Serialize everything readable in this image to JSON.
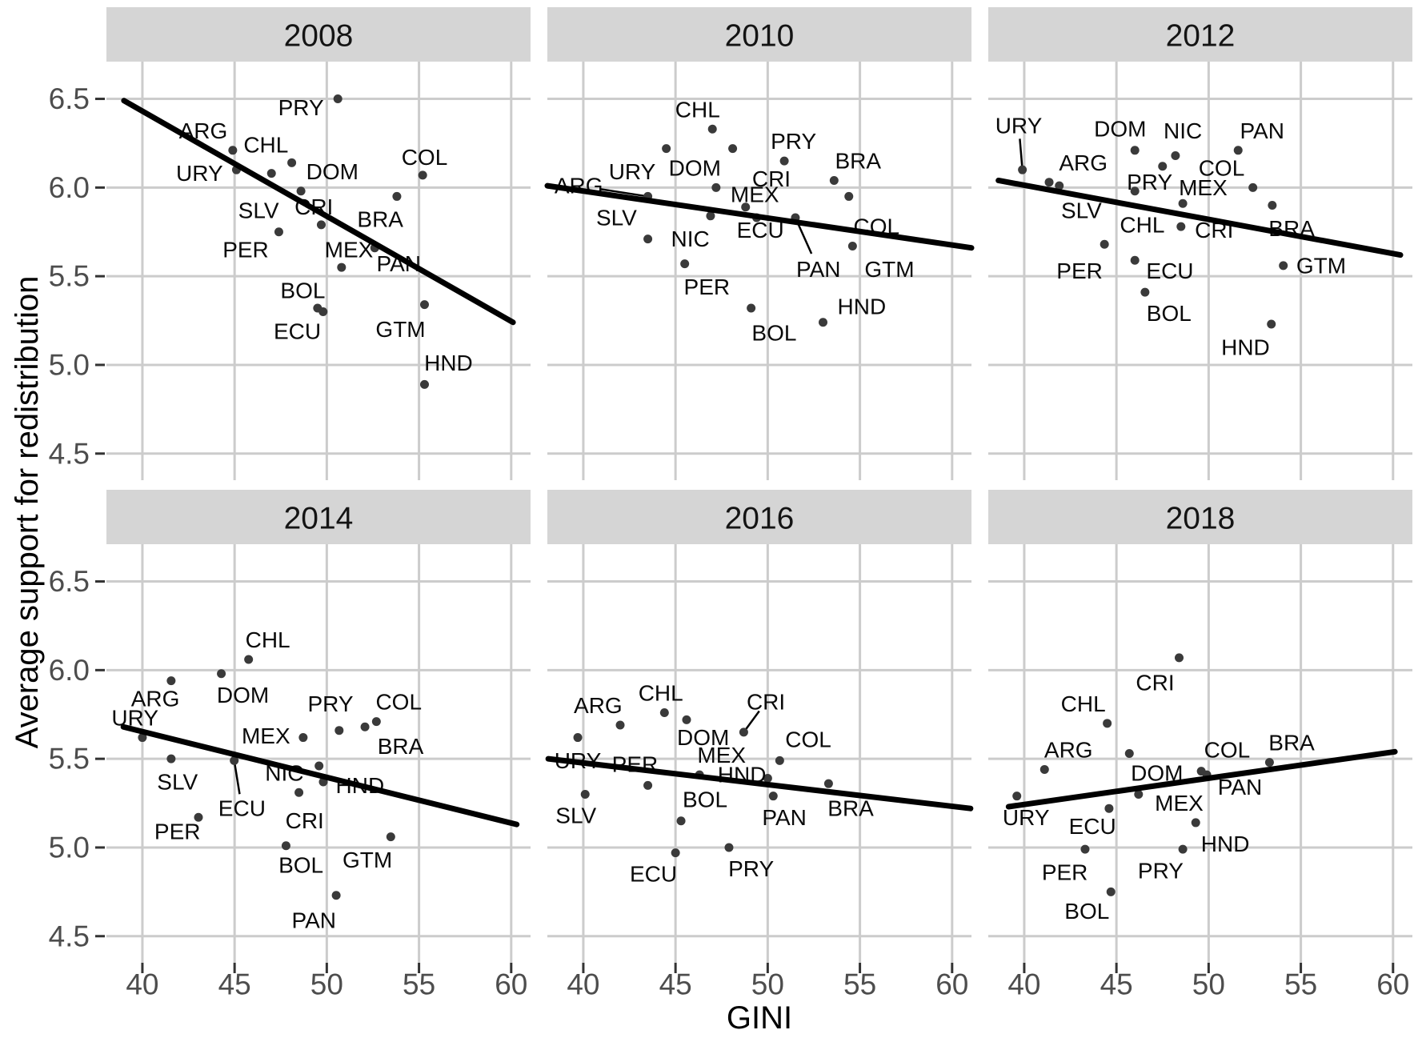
{
  "chart_data": {
    "type": "scatter",
    "title": "",
    "xlabel": "GINI",
    "ylabel": "Average support for redistribution",
    "x_ticks": [
      40,
      45,
      50,
      55,
      60
    ],
    "y_ticks": [
      6.5,
      6.0,
      5.5,
      5.0,
      4.5
    ],
    "xlim": [
      38.05,
      61.05
    ],
    "ylim": [
      4.35,
      6.71
    ],
    "grid": true,
    "legend_position": "none",
    "facets": [
      {
        "year": "2008",
        "trend": {
          "x1": 39.0,
          "y1": 6.49,
          "x2": 60.1,
          "y2": 5.24
        },
        "points": [
          {
            "c": "PRY",
            "x": 50.6,
            "y": 6.5,
            "lx": 48.6,
            "ly": 6.45
          },
          {
            "c": "ARG",
            "x": 44.9,
            "y": 6.21,
            "lx": 43.3,
            "ly": 6.32
          },
          {
            "c": "CHL",
            "x": 48.1,
            "y": 6.14,
            "lx": 46.7,
            "ly": 6.24
          },
          {
            "c": "URY",
            "x": 45.1,
            "y": 6.1,
            "lx": 43.1,
            "ly": 6.08
          },
          {
            "c": "DOM",
            "x": 47.0,
            "y": 6.08,
            "lx": 50.3,
            "ly": 6.09
          },
          {
            "c": "COL",
            "x": 55.2,
            "y": 6.07,
            "lx": 55.3,
            "ly": 6.17
          },
          {
            "c": "SLV",
            "x": 48.6,
            "y": 5.98,
            "lx": 46.3,
            "ly": 5.87
          },
          {
            "c": "BRA",
            "x": 53.8,
            "y": 5.95,
            "lx": 52.9,
            "ly": 5.82
          },
          {
            "c": "CRI",
            "x": 49.7,
            "y": 5.79,
            "lx": 49.3,
            "ly": 5.89
          },
          {
            "c": "PER",
            "x": 47.4,
            "y": 5.75,
            "lx": 45.6,
            "ly": 5.65
          },
          {
            "c": "MEX",
            "x": 52.6,
            "y": 5.66,
            "lx": 51.2,
            "ly": 5.65
          },
          {
            "c": "PAN",
            "x": 50.8,
            "y": 5.55,
            "lx": 53.9,
            "ly": 5.57
          },
          {
            "c": "GTM",
            "x": 55.3,
            "y": 5.34,
            "lx": 54.0,
            "ly": 5.2
          },
          {
            "c": "BOL",
            "x": 49.5,
            "y": 5.32,
            "lx": 48.7,
            "ly": 5.42
          },
          {
            "c": "ECU",
            "x": 49.8,
            "y": 5.3,
            "lx": 48.4,
            "ly": 5.19
          },
          {
            "c": "HND",
            "x": 55.3,
            "y": 4.89,
            "lx": 56.6,
            "ly": 5.01
          }
        ]
      },
      {
        "year": "2010",
        "trend": {
          "x1": 38.05,
          "y1": 6.01,
          "x2": 61.05,
          "y2": 5.66
        },
        "points": [
          {
            "c": "CHL",
            "x": 47.0,
            "y": 6.33,
            "lx": 46.2,
            "ly": 6.44
          },
          {
            "c": "URY",
            "x": 44.5,
            "y": 6.22,
            "lx": 42.65,
            "ly": 6.09
          },
          {
            "c": "CRI",
            "x": 48.1,
            "y": 6.22,
            "lx": 50.2,
            "ly": 6.05
          },
          {
            "c": "PRY",
            "x": 50.9,
            "y": 6.15,
            "lx": 51.4,
            "ly": 6.26
          },
          {
            "c": "BRA",
            "x": 53.6,
            "y": 6.04,
            "lx": 54.9,
            "ly": 6.15
          },
          {
            "c": "DOM",
            "x": 47.2,
            "y": 6.0,
            "lx": 46.05,
            "ly": 6.11
          },
          {
            "c": "ARG",
            "x": 43.5,
            "y": 5.95,
            "lx": 39.75,
            "ly": 6.01,
            "lead": true
          },
          {
            "c": "COL",
            "x": 54.4,
            "y": 5.95,
            "lx": 55.9,
            "ly": 5.78
          },
          {
            "c": "MEX",
            "x": 48.8,
            "y": 5.89,
            "lx": 49.3,
            "ly": 5.96
          },
          {
            "c": "NIC",
            "x": 46.9,
            "y": 5.84,
            "lx": 45.8,
            "ly": 5.71
          },
          {
            "c": "ECU",
            "x": 49.4,
            "y": 5.83,
            "lx": 49.6,
            "ly": 5.76
          },
          {
            "c": "PAN",
            "x": 51.5,
            "y": 5.83,
            "lx": 52.75,
            "ly": 5.54,
            "lead": true
          },
          {
            "c": "SLV",
            "x": 43.5,
            "y": 5.71,
            "lx": 41.8,
            "ly": 5.83
          },
          {
            "c": "GTM",
            "x": 54.6,
            "y": 5.67,
            "lx": 56.6,
            "ly": 5.54
          },
          {
            "c": "PER",
            "x": 45.5,
            "y": 5.57,
            "lx": 46.7,
            "ly": 5.44
          },
          {
            "c": "BOL",
            "x": 49.1,
            "y": 5.32,
            "lx": 50.35,
            "ly": 5.18
          },
          {
            "c": "HND",
            "x": 53.0,
            "y": 5.24,
            "lx": 55.1,
            "ly": 5.33
          }
        ]
      },
      {
        "year": "2012",
        "trend": {
          "x1": 38.6,
          "y1": 6.04,
          "x2": 60.4,
          "y2": 5.62
        },
        "points": [
          {
            "c": "URY",
            "x": 39.9,
            "y": 6.1,
            "lx": 39.7,
            "ly": 6.35,
            "lead": true
          },
          {
            "c": "DOM",
            "x": 46.0,
            "y": 6.21,
            "lx": 45.2,
            "ly": 6.33
          },
          {
            "c": "PAN",
            "x": 51.6,
            "y": 6.21,
            "lx": 52.9,
            "ly": 6.32
          },
          {
            "c": "NIC",
            "x": 48.2,
            "y": 6.18,
            "lx": 48.6,
            "ly": 6.32
          },
          {
            "c": "ARG",
            "x": 41.35,
            "y": 6.03,
            "lx": 43.2,
            "ly": 6.14
          },
          {
            "c": "SLV",
            "x": 41.9,
            "y": 6.01,
            "lx": 43.1,
            "ly": 5.87
          },
          {
            "c": "PRY",
            "x": 47.5,
            "y": 6.12,
            "lx": 46.8,
            "ly": 6.03
          },
          {
            "c": "CHL",
            "x": 46.0,
            "y": 5.98,
            "lx": 46.4,
            "ly": 5.79
          },
          {
            "c": "MEX",
            "x": 48.6,
            "y": 5.91,
            "lx": 49.7,
            "ly": 6.0
          },
          {
            "c": "COL",
            "x": 52.4,
            "y": 6.0,
            "lx": 50.7,
            "ly": 6.11
          },
          {
            "c": "BRA",
            "x": 53.45,
            "y": 5.9,
            "lx": 54.5,
            "ly": 5.77
          },
          {
            "c": "CRI",
            "x": 48.5,
            "y": 5.78,
            "lx": 50.3,
            "ly": 5.76
          },
          {
            "c": "PER",
            "x": 44.35,
            "y": 5.68,
            "lx": 43.0,
            "ly": 5.53
          },
          {
            "c": "ECU",
            "x": 46.0,
            "y": 5.59,
            "lx": 47.9,
            "ly": 5.53
          },
          {
            "c": "BOL",
            "x": 46.55,
            "y": 5.41,
            "lx": 47.85,
            "ly": 5.29
          },
          {
            "c": "GTM",
            "x": 54.05,
            "y": 5.56,
            "lx": 56.1,
            "ly": 5.56
          },
          {
            "c": "HND",
            "x": 53.4,
            "y": 5.23,
            "lx": 52.0,
            "ly": 5.1
          }
        ]
      },
      {
        "year": "2014",
        "trend": {
          "x1": 38.97,
          "y1": 5.68,
          "x2": 60.3,
          "y2": 5.13
        },
        "points": [
          {
            "c": "CHL",
            "x": 45.76,
            "y": 6.06,
            "lx": 46.8,
            "ly": 6.17
          },
          {
            "c": "DOM",
            "x": 44.28,
            "y": 5.98,
            "lx": 45.45,
            "ly": 5.86
          },
          {
            "c": "ARG",
            "x": 41.56,
            "y": 5.94,
            "lx": 40.7,
            "ly": 5.84
          },
          {
            "c": "URY",
            "x": 40.0,
            "y": 5.62,
            "lx": 39.6,
            "ly": 5.73
          },
          {
            "c": "MEX",
            "x": 48.72,
            "y": 5.62,
            "lx": 46.7,
            "ly": 5.63
          },
          {
            "c": "BRA",
            "x": 52.07,
            "y": 5.68,
            "lx": 54.0,
            "ly": 5.57
          },
          {
            "c": "COL",
            "x": 52.69,
            "y": 5.71,
            "lx": 53.9,
            "ly": 5.82
          },
          {
            "c": "PRY",
            "x": 50.67,
            "y": 5.66,
            "lx": 50.2,
            "ly": 5.81
          },
          {
            "c": "SLV",
            "x": 41.56,
            "y": 5.5,
            "lx": 41.9,
            "ly": 5.37
          },
          {
            "c": "ECU",
            "x": 44.98,
            "y": 5.49,
            "lx": 45.4,
            "ly": 5.22,
            "lead": true
          },
          {
            "c": "NIC",
            "x": 49.58,
            "y": 5.46,
            "lx": 47.7,
            "ly": 5.42
          },
          {
            "c": "HND",
            "x": 49.81,
            "y": 5.37,
            "lx": 51.8,
            "ly": 5.35
          },
          {
            "c": "CRI",
            "x": 48.49,
            "y": 5.31,
            "lx": 48.8,
            "ly": 5.15
          },
          {
            "c": "PER",
            "x": 43.04,
            "y": 5.17,
            "lx": 41.9,
            "ly": 5.09
          },
          {
            "c": "GTM",
            "x": 53.47,
            "y": 5.06,
            "lx": 52.2,
            "ly": 4.93
          },
          {
            "c": "BOL",
            "x": 47.79,
            "y": 5.01,
            "lx": 48.6,
            "ly": 4.9
          },
          {
            "c": "PAN",
            "x": 50.51,
            "y": 4.73,
            "lx": 49.3,
            "ly": 4.59
          }
        ]
      },
      {
        "year": "2016",
        "trend": {
          "x1": 38.1,
          "y1": 5.5,
          "x2": 61.0,
          "y2": 5.22
        },
        "points": [
          {
            "c": "CHL",
            "x": 44.4,
            "y": 5.76,
            "lx": 44.2,
            "ly": 5.87
          },
          {
            "c": "ARG",
            "x": 42.0,
            "y": 5.69,
            "lx": 40.8,
            "ly": 5.8
          },
          {
            "c": "DOM",
            "x": 45.6,
            "y": 5.72,
            "lx": 46.5,
            "ly": 5.62
          },
          {
            "c": "CRI",
            "x": 48.7,
            "y": 5.65,
            "lx": 49.9,
            "ly": 5.82,
            "lead": true
          },
          {
            "c": "URY",
            "x": 39.7,
            "y": 5.62,
            "lx": 39.7,
            "ly": 5.49
          },
          {
            "c": "COL",
            "x": 50.65,
            "y": 5.49,
            "lx": 52.2,
            "ly": 5.61
          },
          {
            "c": "MEX",
            "x": 46.3,
            "y": 5.41,
            "lx": 47.5,
            "ly": 5.52
          },
          {
            "c": "HND",
            "x": 50.0,
            "y": 5.39,
            "lx": 48.6,
            "ly": 5.41
          },
          {
            "c": "PER",
            "x": 43.5,
            "y": 5.35,
            "lx": 42.8,
            "ly": 5.47
          },
          {
            "c": "BRA",
            "x": 53.3,
            "y": 5.36,
            "lx": 54.5,
            "ly": 5.22
          },
          {
            "c": "SLV",
            "x": 40.1,
            "y": 5.3,
            "lx": 39.6,
            "ly": 5.18
          },
          {
            "c": "PAN",
            "x": 50.3,
            "y": 5.29,
            "lx": 50.9,
            "ly": 5.17
          },
          {
            "c": "BOL",
            "x": 45.3,
            "y": 5.15,
            "lx": 46.6,
            "ly": 5.27
          },
          {
            "c": "ECU",
            "x": 45.0,
            "y": 4.97,
            "lx": 43.8,
            "ly": 4.85
          },
          {
            "c": "PRY",
            "x": 47.9,
            "y": 5.0,
            "lx": 49.1,
            "ly": 4.88
          }
        ]
      },
      {
        "year": "2018",
        "trend": {
          "x1": 39.15,
          "y1": 5.23,
          "x2": 60.1,
          "y2": 5.54
        },
        "points": [
          {
            "c": "CRI",
            "x": 48.4,
            "y": 6.07,
            "lx": 47.1,
            "ly": 5.93
          },
          {
            "c": "CHL",
            "x": 44.5,
            "y": 5.7,
            "lx": 43.2,
            "ly": 5.81
          },
          {
            "c": "DOM",
            "x": 45.7,
            "y": 5.53,
            "lx": 47.2,
            "ly": 5.42
          },
          {
            "c": "BRA",
            "x": 53.3,
            "y": 5.48,
            "lx": 54.5,
            "ly": 5.59
          },
          {
            "c": "ARG",
            "x": 41.1,
            "y": 5.44,
            "lx": 42.4,
            "ly": 5.55
          },
          {
            "c": "COL",
            "x": 49.6,
            "y": 5.43,
            "lx": 51.0,
            "ly": 5.55
          },
          {
            "c": "PAN",
            "x": 49.9,
            "y": 5.41,
            "lx": 51.7,
            "ly": 5.34
          },
          {
            "c": "MEX",
            "x": 46.2,
            "y": 5.3,
            "lx": 48.4,
            "ly": 5.25
          },
          {
            "c": "URY",
            "x": 39.6,
            "y": 5.29,
            "lx": 40.1,
            "ly": 5.17
          },
          {
            "c": "ECU",
            "x": 44.6,
            "y": 5.22,
            "lx": 43.7,
            "ly": 5.12
          },
          {
            "c": "HND",
            "x": 49.3,
            "y": 5.14,
            "lx": 50.9,
            "ly": 5.02
          },
          {
            "c": "PRY",
            "x": 48.6,
            "y": 4.99,
            "lx": 47.4,
            "ly": 4.87
          },
          {
            "c": "PER",
            "x": 43.3,
            "y": 4.99,
            "lx": 42.2,
            "ly": 4.86
          },
          {
            "c": "BOL",
            "x": 44.7,
            "y": 4.75,
            "lx": 43.4,
            "ly": 4.64
          }
        ]
      }
    ],
    "colors": {
      "background": "#ffffff",
      "strip_fill": "#d5d5d5",
      "strip_text": "#141414",
      "gridline": "#cccccc",
      "point": "#3a3a3a",
      "trend_line": "#000000",
      "leader_line": "#000000",
      "tick_label": "#4d4d4d",
      "country_label": "#0a0a0a",
      "axis_title": "#000000"
    }
  }
}
